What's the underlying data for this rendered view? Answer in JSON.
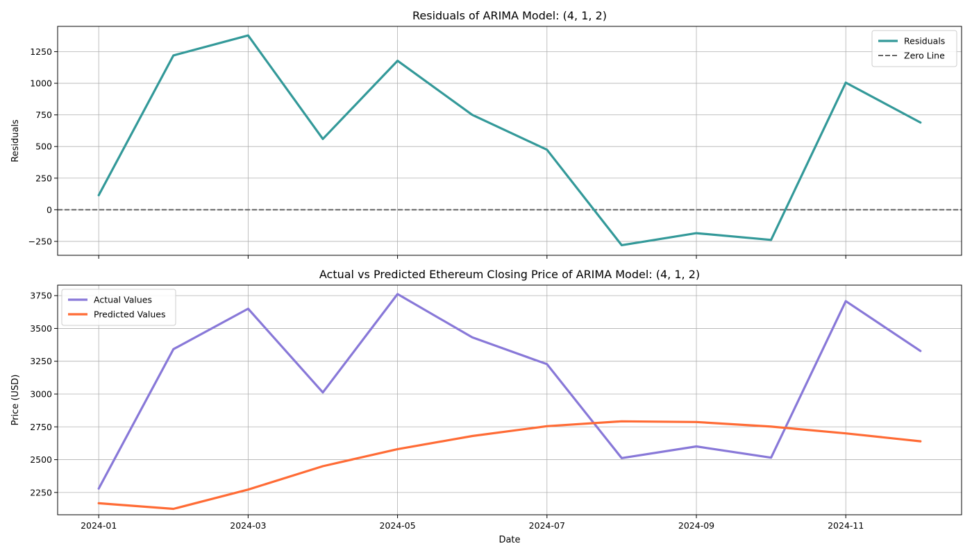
{
  "chart_data": [
    {
      "type": "line",
      "title": "Residuals of ARIMA Model: (4, 1, 2)",
      "xlabel": "",
      "ylabel": "Residuals",
      "x": [
        "2024-01",
        "2024-02",
        "2024-03",
        "2024-04",
        "2024-05",
        "2024-06",
        "2024-07",
        "2024-08",
        "2024-09",
        "2024-10",
        "2024-11",
        "2024-12"
      ],
      "x_ticks": [
        "2024-01",
        "2024-03",
        "2024-05",
        "2024-07",
        "2024-09",
        "2024-11"
      ],
      "y_ticks": [
        -250,
        0,
        250,
        500,
        750,
        1000,
        1250
      ],
      "ylim": [
        -360,
        1450
      ],
      "grid": true,
      "legend": "upper-right",
      "series": [
        {
          "name": "Residuals",
          "color": "#339999",
          "style": "solid",
          "values": [
            115,
            1220,
            1378,
            560,
            1178,
            750,
            475,
            -280,
            -185,
            -238,
            1005,
            690
          ]
        }
      ],
      "reference_lines": [
        {
          "name": "Zero Line",
          "y": 0,
          "color": "#666666",
          "style": "dashed"
        }
      ]
    },
    {
      "type": "line",
      "title": "Actual vs Predicted Ethereum Closing Price of ARIMA Model: (4, 1, 2)",
      "xlabel": "Date",
      "ylabel": "Price (USD)",
      "x": [
        "2024-01",
        "2024-02",
        "2024-03",
        "2024-04",
        "2024-05",
        "2024-06",
        "2024-07",
        "2024-08",
        "2024-09",
        "2024-10",
        "2024-11",
        "2024-12"
      ],
      "x_ticks": [
        "2024-01",
        "2024-03",
        "2024-05",
        "2024-07",
        "2024-09",
        "2024-11"
      ],
      "y_ticks": [
        2250,
        2500,
        2750,
        3000,
        3250,
        3500,
        3750
      ],
      "ylim": [
        2080,
        3830
      ],
      "grid": true,
      "legend": "upper-left",
      "series": [
        {
          "name": "Actual Values",
          "color": "#8878d8",
          "style": "solid",
          "values": [
            2280,
            3342,
            3650,
            3012,
            3762,
            3432,
            3228,
            2512,
            2601,
            2515,
            3708,
            3328
          ]
        },
        {
          "name": "Predicted Values",
          "color": "#ff6b35",
          "style": "solid",
          "values": [
            2168,
            2125,
            2272,
            2450,
            2580,
            2680,
            2755,
            2792,
            2787,
            2752,
            2700,
            2640
          ]
        }
      ]
    }
  ]
}
